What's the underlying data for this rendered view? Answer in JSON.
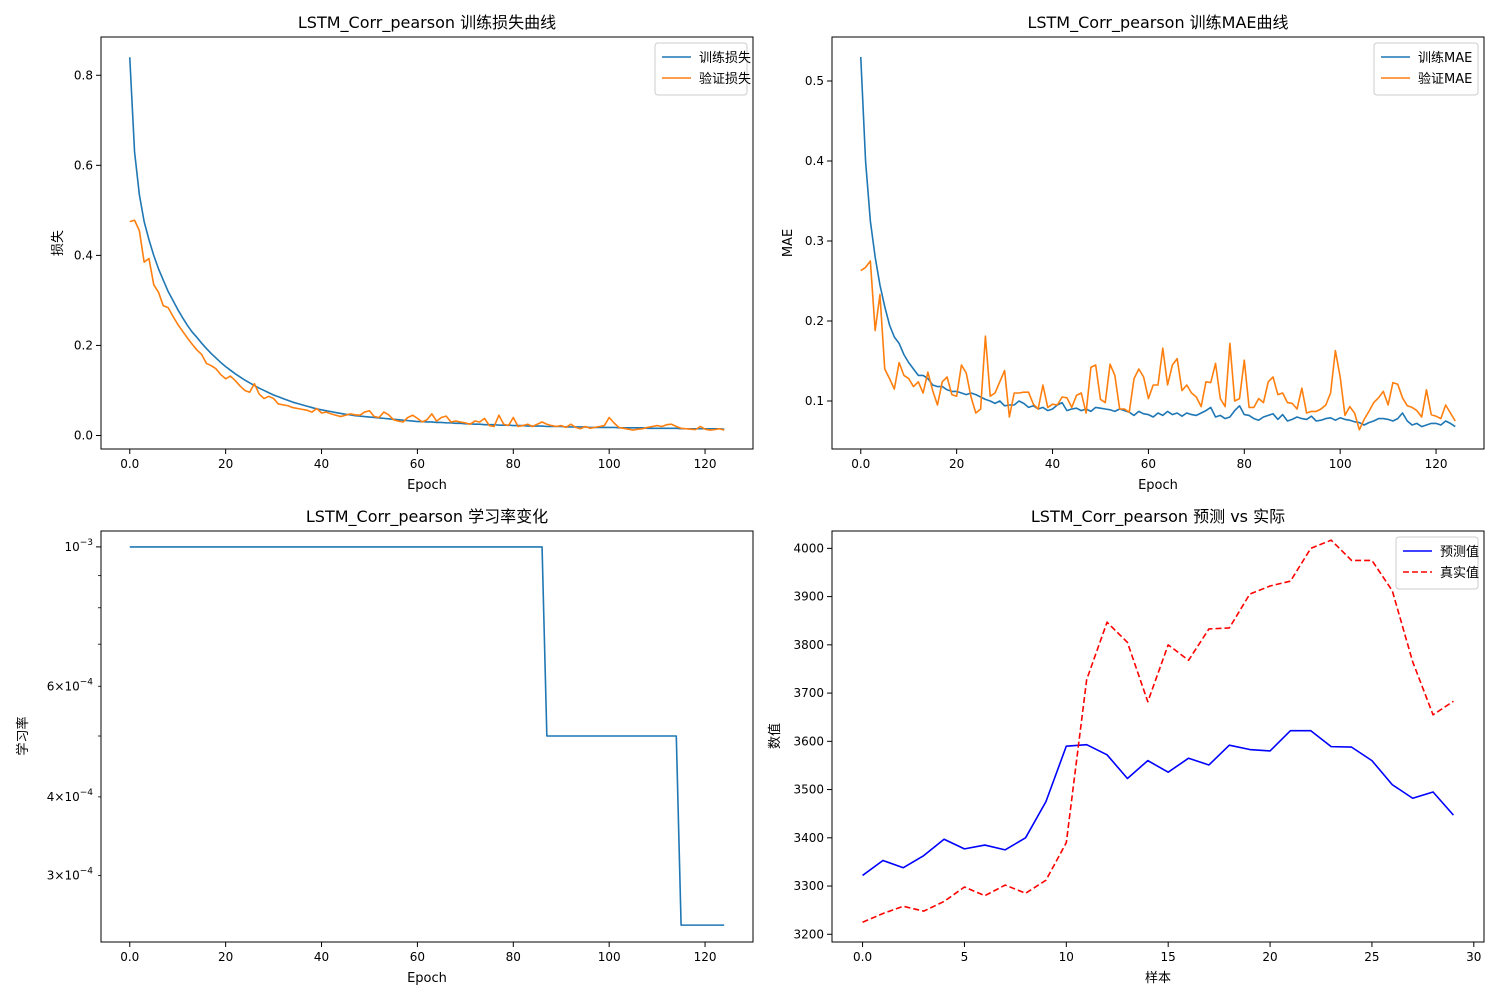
{
  "charts": [
    {
      "type": "line",
      "title": "LSTM_Corr_pearson 训练损失曲线",
      "xlabel": "Epoch",
      "ylabel": "损失",
      "xlim": [
        -6,
        130
      ],
      "ylim": [
        -0.03,
        0.885
      ],
      "yscale": "linear",
      "x_ticks": [
        0,
        20,
        40,
        60,
        80,
        100,
        120
      ],
      "y_ticks": [
        0.0,
        0.2,
        0.4,
        0.6,
        0.8
      ],
      "grid": false,
      "legend_position": "upper right",
      "series": [
        {
          "name": "训练损失",
          "color": "#1f77b4",
          "style": "solid",
          "x_start": 0,
          "values": [
            0.84,
            0.63,
            0.535,
            0.475,
            0.435,
            0.4,
            0.37,
            0.345,
            0.32,
            0.3,
            0.28,
            0.262,
            0.245,
            0.23,
            0.218,
            0.205,
            0.193,
            0.182,
            0.172,
            0.162,
            0.153,
            0.145,
            0.137,
            0.13,
            0.123,
            0.117,
            0.111,
            0.105,
            0.1,
            0.095,
            0.09,
            0.086,
            0.082,
            0.078,
            0.074,
            0.071,
            0.068,
            0.065,
            0.062,
            0.059,
            0.057,
            0.055,
            0.053,
            0.051,
            0.049,
            0.047,
            0.046,
            0.044,
            0.043,
            0.042,
            0.041,
            0.04,
            0.039,
            0.038,
            0.037,
            0.036,
            0.035,
            0.034,
            0.033,
            0.032,
            0.031,
            0.031,
            0.03,
            0.03,
            0.029,
            0.029,
            0.028,
            0.028,
            0.027,
            0.027,
            0.026,
            0.026,
            0.025,
            0.025,
            0.024,
            0.024,
            0.024,
            0.023,
            0.023,
            0.023,
            0.022,
            0.022,
            0.022,
            0.021,
            0.021,
            0.021,
            0.021,
            0.02,
            0.02,
            0.02,
            0.02,
            0.019,
            0.019,
            0.019,
            0.019,
            0.019,
            0.018,
            0.018,
            0.018,
            0.018,
            0.018,
            0.018,
            0.017,
            0.017,
            0.017,
            0.017,
            0.017,
            0.017,
            0.016,
            0.016,
            0.016,
            0.016,
            0.016,
            0.016,
            0.016,
            0.015,
            0.015,
            0.015,
            0.015,
            0.015,
            0.015,
            0.015,
            0.015,
            0.015,
            0.014
          ]
        },
        {
          "name": "验证损失",
          "color": "#ff7f0e",
          "style": "solid",
          "x_start": 0,
          "values": [
            0.475,
            0.478,
            0.455,
            0.385,
            0.393,
            0.335,
            0.318,
            0.288,
            0.284,
            0.265,
            0.247,
            0.232,
            0.217,
            0.203,
            0.19,
            0.18,
            0.16,
            0.155,
            0.148,
            0.135,
            0.126,
            0.132,
            0.122,
            0.11,
            0.1,
            0.096,
            0.115,
            0.092,
            0.082,
            0.087,
            0.082,
            0.07,
            0.068,
            0.066,
            0.062,
            0.06,
            0.058,
            0.056,
            0.052,
            0.06,
            0.05,
            0.052,
            0.048,
            0.045,
            0.042,
            0.045,
            0.048,
            0.046,
            0.045,
            0.052,
            0.055,
            0.042,
            0.04,
            0.052,
            0.046,
            0.035,
            0.032,
            0.03,
            0.04,
            0.045,
            0.038,
            0.03,
            0.035,
            0.048,
            0.032,
            0.04,
            0.043,
            0.03,
            0.032,
            0.03,
            0.028,
            0.025,
            0.032,
            0.03,
            0.038,
            0.022,
            0.02,
            0.045,
            0.025,
            0.022,
            0.04,
            0.02,
            0.022,
            0.025,
            0.02,
            0.025,
            0.03,
            0.025,
            0.022,
            0.02,
            0.022,
            0.018,
            0.025,
            0.018,
            0.015,
            0.02,
            0.016,
            0.018,
            0.02,
            0.022,
            0.04,
            0.028,
            0.018,
            0.016,
            0.014,
            0.012,
            0.014,
            0.015,
            0.018,
            0.02,
            0.022,
            0.02,
            0.024,
            0.025,
            0.02,
            0.016,
            0.015,
            0.014,
            0.013,
            0.02,
            0.014,
            0.012,
            0.013,
            0.015,
            0.012
          ]
        }
      ]
    },
    {
      "type": "line",
      "title": "LSTM_Corr_pearson 训练MAE曲线",
      "xlabel": "Epoch",
      "ylabel": "MAE",
      "xlim": [
        -6,
        130
      ],
      "ylim": [
        0.04,
        0.555
      ],
      "yscale": "linear",
      "x_ticks": [
        0,
        20,
        40,
        60,
        80,
        100,
        120
      ],
      "y_ticks": [
        0.1,
        0.2,
        0.3,
        0.4,
        0.5
      ],
      "grid": false,
      "legend_position": "upper right",
      "series": [
        {
          "name": "训练MAE",
          "color": "#1f77b4",
          "style": "solid",
          "x_start": 0,
          "values": [
            0.53,
            0.4,
            0.325,
            0.28,
            0.245,
            0.218,
            0.195,
            0.18,
            0.172,
            0.158,
            0.148,
            0.14,
            0.132,
            0.132,
            0.128,
            0.12,
            0.118,
            0.118,
            0.114,
            0.112,
            0.112,
            0.11,
            0.108,
            0.11,
            0.108,
            0.105,
            0.102,
            0.1,
            0.097,
            0.1,
            0.094,
            0.095,
            0.095,
            0.1,
            0.097,
            0.092,
            0.094,
            0.09,
            0.092,
            0.088,
            0.09,
            0.095,
            0.098,
            0.088,
            0.09,
            0.091,
            0.088,
            0.09,
            0.087,
            0.092,
            0.091,
            0.09,
            0.089,
            0.087,
            0.09,
            0.088,
            0.086,
            0.082,
            0.087,
            0.084,
            0.083,
            0.08,
            0.085,
            0.082,
            0.087,
            0.083,
            0.085,
            0.081,
            0.085,
            0.083,
            0.082,
            0.085,
            0.088,
            0.092,
            0.08,
            0.082,
            0.078,
            0.08,
            0.088,
            0.094,
            0.083,
            0.082,
            0.078,
            0.076,
            0.08,
            0.082,
            0.084,
            0.077,
            0.083,
            0.075,
            0.077,
            0.08,
            0.078,
            0.077,
            0.081,
            0.075,
            0.076,
            0.078,
            0.079,
            0.076,
            0.079,
            0.077,
            0.076,
            0.074,
            0.073,
            0.07,
            0.073,
            0.075,
            0.078,
            0.078,
            0.077,
            0.075,
            0.078,
            0.085,
            0.075,
            0.07,
            0.072,
            0.068,
            0.07,
            0.072,
            0.072,
            0.07,
            0.075,
            0.072,
            0.068
          ]
        },
        {
          "name": "验证MAE",
          "color": "#ff7f0e",
          "style": "solid",
          "x_start": 0,
          "values": [
            0.263,
            0.267,
            0.275,
            0.188,
            0.233,
            0.14,
            0.128,
            0.115,
            0.148,
            0.132,
            0.128,
            0.118,
            0.124,
            0.11,
            0.136,
            0.113,
            0.095,
            0.124,
            0.13,
            0.108,
            0.106,
            0.145,
            0.135,
            0.105,
            0.085,
            0.09,
            0.181,
            0.106,
            0.11,
            0.124,
            0.138,
            0.08,
            0.11,
            0.11,
            0.111,
            0.111,
            0.096,
            0.09,
            0.12,
            0.092,
            0.096,
            0.095,
            0.105,
            0.104,
            0.092,
            0.107,
            0.11,
            0.085,
            0.142,
            0.145,
            0.102,
            0.098,
            0.146,
            0.132,
            0.09,
            0.09,
            0.086,
            0.128,
            0.14,
            0.13,
            0.103,
            0.12,
            0.12,
            0.166,
            0.12,
            0.145,
            0.153,
            0.113,
            0.12,
            0.11,
            0.105,
            0.093,
            0.124,
            0.123,
            0.147,
            0.103,
            0.093,
            0.172,
            0.1,
            0.103,
            0.151,
            0.092,
            0.092,
            0.103,
            0.098,
            0.124,
            0.13,
            0.108,
            0.11,
            0.098,
            0.097,
            0.09,
            0.116,
            0.085,
            0.087,
            0.087,
            0.09,
            0.095,
            0.11,
            0.163,
            0.13,
            0.082,
            0.093,
            0.085,
            0.064,
            0.077,
            0.087,
            0.098,
            0.104,
            0.112,
            0.095,
            0.123,
            0.121,
            0.104,
            0.094,
            0.092,
            0.088,
            0.08,
            0.114,
            0.083,
            0.081,
            0.078,
            0.095,
            0.085,
            0.075
          ]
        }
      ]
    },
    {
      "type": "line",
      "title": "LSTM_Corr_pearson 学习率变化",
      "xlabel": "Epoch",
      "ylabel": "学习率",
      "xlim": [
        -6,
        130
      ],
      "ylim": [
        0.000235,
        0.00106
      ],
      "yscale": "log",
      "x_ticks": [
        0,
        20,
        40,
        60,
        80,
        100,
        120
      ],
      "y_ticks_major": [
        {
          "value": 0.001,
          "base": "10",
          "exp": "−3"
        }
      ],
      "y_ticks_minor_labeled": [
        {
          "value": 0.0006,
          "mant": "6",
          "base": "10",
          "exp": "−4"
        },
        {
          "value": 0.0004,
          "mant": "4",
          "base": "10",
          "exp": "−4"
        },
        {
          "value": 0.0003,
          "mant": "3",
          "base": "10",
          "exp": "−4"
        }
      ],
      "y_ticks_minor": [
        0.0005,
        0.0007,
        0.0008,
        0.0009
      ],
      "grid": false,
      "series": [
        {
          "name": "",
          "color": "#1f77b4",
          "style": "solid",
          "points": [
            [
              0,
              0.001
            ],
            [
              86,
              0.001
            ],
            [
              87,
              0.0005
            ],
            [
              114,
              0.0005
            ],
            [
              115,
              0.00025
            ],
            [
              124,
              0.00025
            ]
          ]
        }
      ]
    },
    {
      "type": "line",
      "title": "LSTM_Corr_pearson 预测 vs 实际",
      "xlabel": "样本",
      "ylabel": "数值",
      "xlim": [
        -1.5,
        30.5
      ],
      "ylim": [
        3184,
        4036
      ],
      "yscale": "linear",
      "x_ticks": [
        0,
        5,
        10,
        15,
        20,
        25,
        30
      ],
      "y_ticks": [
        3200,
        3300,
        3400,
        3500,
        3600,
        3700,
        3800,
        3900,
        4000
      ],
      "grid": false,
      "legend_position": "upper right",
      "series": [
        {
          "name": "预测值",
          "color": "#0000ff",
          "style": "solid",
          "x_start": 0,
          "values": [
            3322,
            3353,
            3338,
            3363,
            3397,
            3377,
            3385,
            3375,
            3400,
            3475,
            3590,
            3593,
            3572,
            3523,
            3560,
            3536,
            3565,
            3551,
            3592,
            3583,
            3580,
            3622,
            3622,
            3589,
            3588,
            3560,
            3510,
            3482,
            3495,
            3447
          ]
        },
        {
          "name": "真实值",
          "color": "#ff0000",
          "style": "dashed",
          "x_start": 0,
          "values": [
            3225,
            3243,
            3258,
            3248,
            3268,
            3298,
            3280,
            3302,
            3285,
            3312,
            3390,
            3728,
            3847,
            3805,
            3682,
            3800,
            3768,
            3833,
            3835,
            3905,
            3922,
            3932,
            4000,
            4017,
            3975,
            3975,
            3912,
            3765,
            3655,
            3683
          ]
        }
      ]
    }
  ]
}
